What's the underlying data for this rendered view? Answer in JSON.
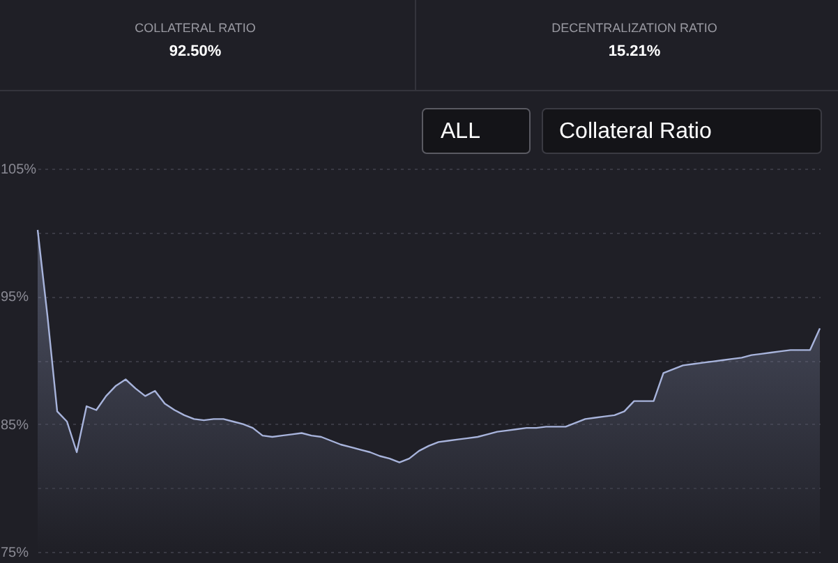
{
  "chart_data": {
    "type": "area",
    "categories": [
      null,
      null,
      null,
      null,
      null,
      null,
      null,
      null,
      null,
      null,
      null,
      null,
      null,
      null,
      null,
      null,
      null,
      null,
      null,
      null,
      null,
      null,
      null,
      null,
      null,
      null,
      null,
      null,
      null,
      null,
      null,
      null,
      null,
      null,
      null,
      null,
      null,
      null,
      null,
      null,
      null,
      null,
      null,
      null,
      null,
      null,
      null,
      null,
      null,
      null,
      null,
      null,
      null,
      null,
      null,
      null,
      null,
      null,
      null,
      null,
      null,
      null,
      null,
      null,
      null,
      null,
      null,
      null,
      null,
      null,
      null,
      null,
      null,
      null,
      null,
      null,
      null,
      null,
      null,
      null,
      null
    ],
    "series": [
      {
        "color": "#a8b4dc",
        "values": [
          100.2,
          93.5,
          86,
          85.2,
          82.8,
          86.4,
          86.1,
          87.2,
          88.0,
          88.5,
          87.8,
          87.2,
          87.6,
          86.6,
          86.1,
          85.7,
          85.4,
          85.3,
          85.4,
          85.4,
          85.2,
          85.0,
          84.7,
          84.1,
          84.0,
          84.1,
          84.2,
          84.3,
          84.1,
          84.0,
          83.7,
          83.4,
          83.2,
          83.0,
          82.8,
          82.5,
          82.3,
          82.0,
          82.3,
          82.9,
          83.3,
          83.6,
          83.7,
          83.8,
          83.9,
          84.0,
          84.2,
          84.4,
          84.5,
          84.6,
          84.7,
          84.7,
          84.8,
          84.8,
          84.8,
          85.1,
          85.4,
          85.5,
          85.6,
          85.7,
          86.0,
          86.8,
          86.8,
          86.8,
          89.0,
          89.3,
          89.6,
          89.7,
          89.8,
          89.9,
          90.0,
          90.1,
          90.2,
          90.4,
          90.5,
          90.6,
          90.7,
          90.8,
          90.8,
          90.8,
          92.5
        ]
      }
    ],
    "ylim": [
      75,
      105
    ],
    "yticks": [
      {
        "value": 75,
        "label": "75%"
      },
      {
        "value": 80,
        "label": null
      },
      {
        "value": 85,
        "label": "85%"
      },
      {
        "value": 90,
        "label": null
      },
      {
        "value": 95,
        "label": "95%"
      },
      {
        "value": 100,
        "label": null
      },
      {
        "value": 105,
        "label": "105%"
      }
    ],
    "grid": "y",
    "tick_labels": "y",
    "annotations": [
      "COLLATERAL RATIO",
      "92.50%",
      "DECENTRALIZATION RATIO",
      "15.21%",
      "ALL",
      "Collateral Ratio"
    ]
  }
}
